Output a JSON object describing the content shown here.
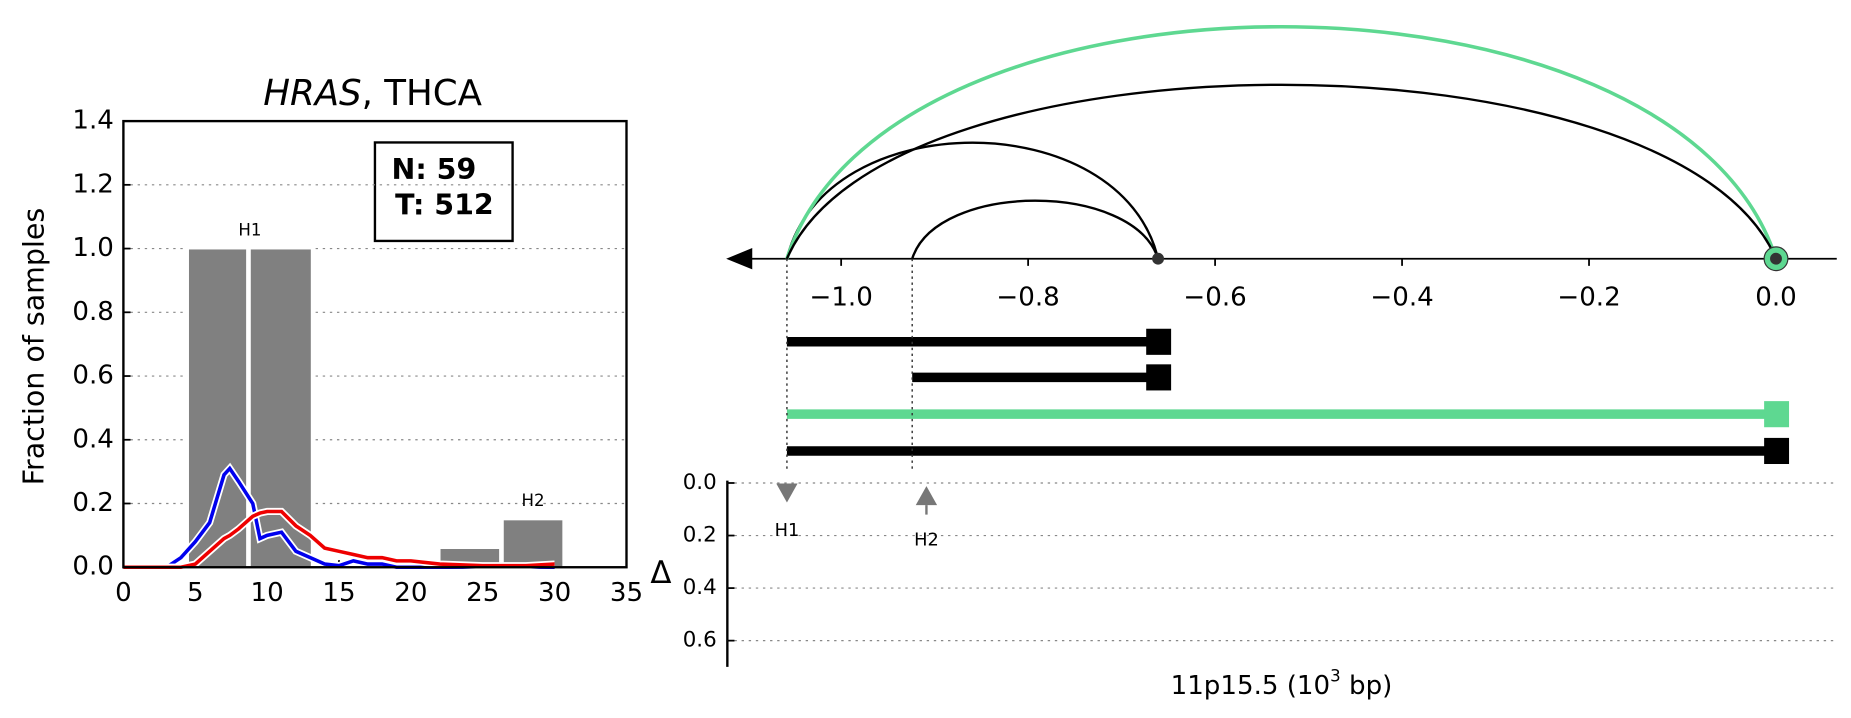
{
  "chart_data": [
    {
      "type": "histogram",
      "title": {
        "gene": "HRAS",
        "rest": ", THCA"
      },
      "ylabel": "Fraction of samples",
      "legend": {
        "normal": "N: 59",
        "tumor": "T: 512"
      },
      "xlim": [
        0,
        35
      ],
      "xticks": [
        0,
        5,
        10,
        15,
        20,
        25,
        30,
        35
      ],
      "ylim": [
        0,
        1.4
      ],
      "yticks": [
        {
          "value": 0,
          "label": "0.0"
        },
        0.2,
        0.4,
        0.6,
        0.8,
        {
          "value": 1,
          "label": "1.0"
        },
        1.2,
        1.4
      ],
      "grid": true,
      "bar_color": "#808080",
      "groups": [
        {
          "name": "H1",
          "bars": [
            {
              "left": 4.5,
              "right": 8.6,
              "value": 1.0
            },
            {
              "left": 8.8,
              "right": 13.1,
              "value": 1.0
            }
          ]
        },
        {
          "name": "H2",
          "bars": [
            {
              "left": 22.0,
              "right": 26.2,
              "value": 0.06
            },
            {
              "left": 26.4,
              "right": 30.6,
              "value": 0.15
            }
          ]
        }
      ],
      "x": [
        0,
        3,
        4,
        5,
        6,
        7,
        7.4,
        8,
        9,
        9.5,
        10,
        11,
        12,
        13,
        14,
        15,
        16,
        17,
        18,
        19,
        20,
        22,
        25,
        28,
        30
      ],
      "series": [
        {
          "color": "#0000ee",
          "values": [
            0,
            0,
            0.03,
            0.08,
            0.14,
            0.29,
            0.31,
            0.27,
            0.2,
            0.09,
            0.1,
            0.11,
            0.05,
            0.03,
            0.01,
            0.005,
            0.02,
            0.01,
            0.01,
            0,
            0,
            0,
            0,
            0,
            0
          ]
        },
        {
          "color": "#ee0000",
          "values": [
            0,
            0,
            0,
            0.01,
            0.05,
            0.09,
            0.1,
            0.12,
            0.16,
            0.17,
            0.175,
            0.175,
            0.13,
            0.1,
            0.06,
            0.05,
            0.04,
            0.03,
            0.03,
            0.02,
            0.02,
            0.01,
            0.005,
            0.005,
            0.01
          ]
        }
      ]
    },
    {
      "type": "arc",
      "xlabel": {
        "base": "11p15.5 (10",
        "sup": "3",
        "end": " bp)"
      },
      "ylabel": "Δ",
      "xlim": [
        -1.123,
        0.065
      ],
      "xticks": [
        {
          "value": -1.0,
          "label": "−1.0"
        },
        {
          "value": -0.8,
          "label": "−0.8"
        },
        {
          "value": -0.6,
          "label": "−0.6"
        },
        {
          "value": -0.4,
          "label": "−0.4"
        },
        {
          "value": -0.2,
          "label": "−0.2"
        },
        {
          "value": 0,
          "label": "0.0"
        }
      ],
      "ylim": [
        0,
        0.7
      ],
      "yticks": [
        {
          "value": 0,
          "label": "0.0"
        },
        0.2,
        0.4,
        0.6
      ],
      "grid": true,
      "segments": [
        {
          "start": -1.058,
          "end": -0.661,
          "color": "#000000"
        },
        {
          "start": -0.924,
          "end": -0.661,
          "color": "#000000"
        },
        {
          "start": -1.058,
          "end": 0.0,
          "color": "#5ed891"
        },
        {
          "start": -1.058,
          "end": 0.0,
          "color": "#000000"
        }
      ],
      "haplotypes": [
        {
          "name": "H1",
          "position": -1.058,
          "delta": 0.02,
          "direction": "down",
          "color": "#777777"
        },
        {
          "name": "H2",
          "position": -0.924,
          "delta": 0.03,
          "direction": "up",
          "color": "#777777"
        }
      ]
    }
  ]
}
